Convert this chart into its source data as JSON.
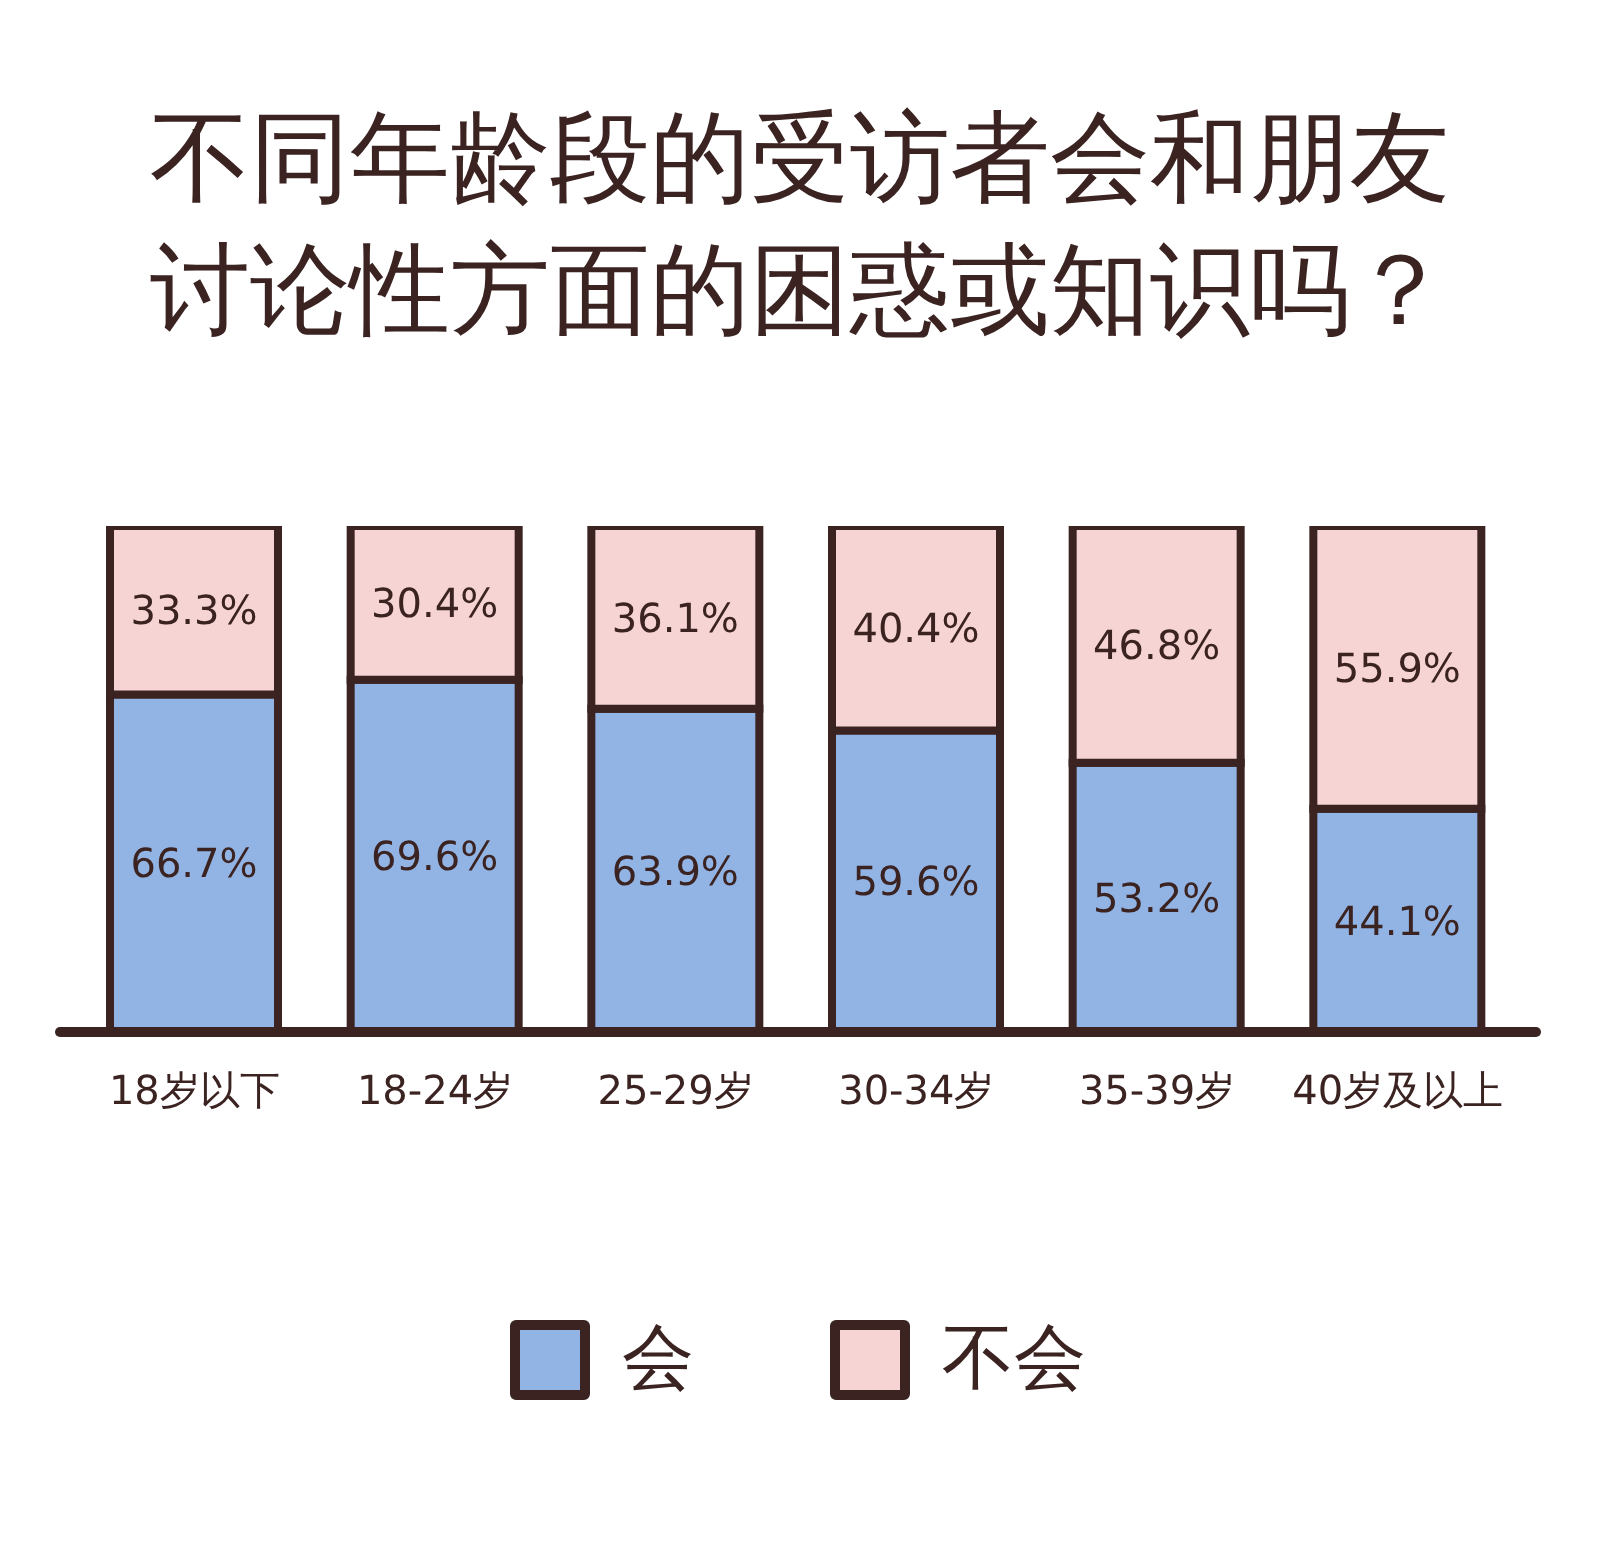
{
  "chart_data": {
    "type": "bar",
    "title": "不同年龄段的受访者会和朋友讨论性方面的困惑或知识吗？",
    "categories": [
      "18岁以下",
      "18-24岁",
      "25-29岁",
      "30-34岁",
      "35-39岁",
      "40岁及以上"
    ],
    "stacked": true,
    "ylim": [
      0,
      100
    ],
    "legend": "bottom",
    "series": [
      {
        "name": "会",
        "color": "#92b4e4",
        "values": [
          66.7,
          69.6,
          63.9,
          59.6,
          53.2,
          44.1
        ],
        "value_labels": [
          "66.7%",
          "69.6%",
          "63.9%",
          "59.6%",
          "53.2%",
          "44.1%"
        ]
      },
      {
        "name": "不会",
        "color": "#f6d4d4",
        "values": [
          33.3,
          30.4,
          36.1,
          40.4,
          46.8,
          55.9
        ],
        "value_labels": [
          "33.3%",
          "30.4%",
          "36.1%",
          "40.4%",
          "46.8%",
          "55.9%"
        ]
      }
    ]
  }
}
